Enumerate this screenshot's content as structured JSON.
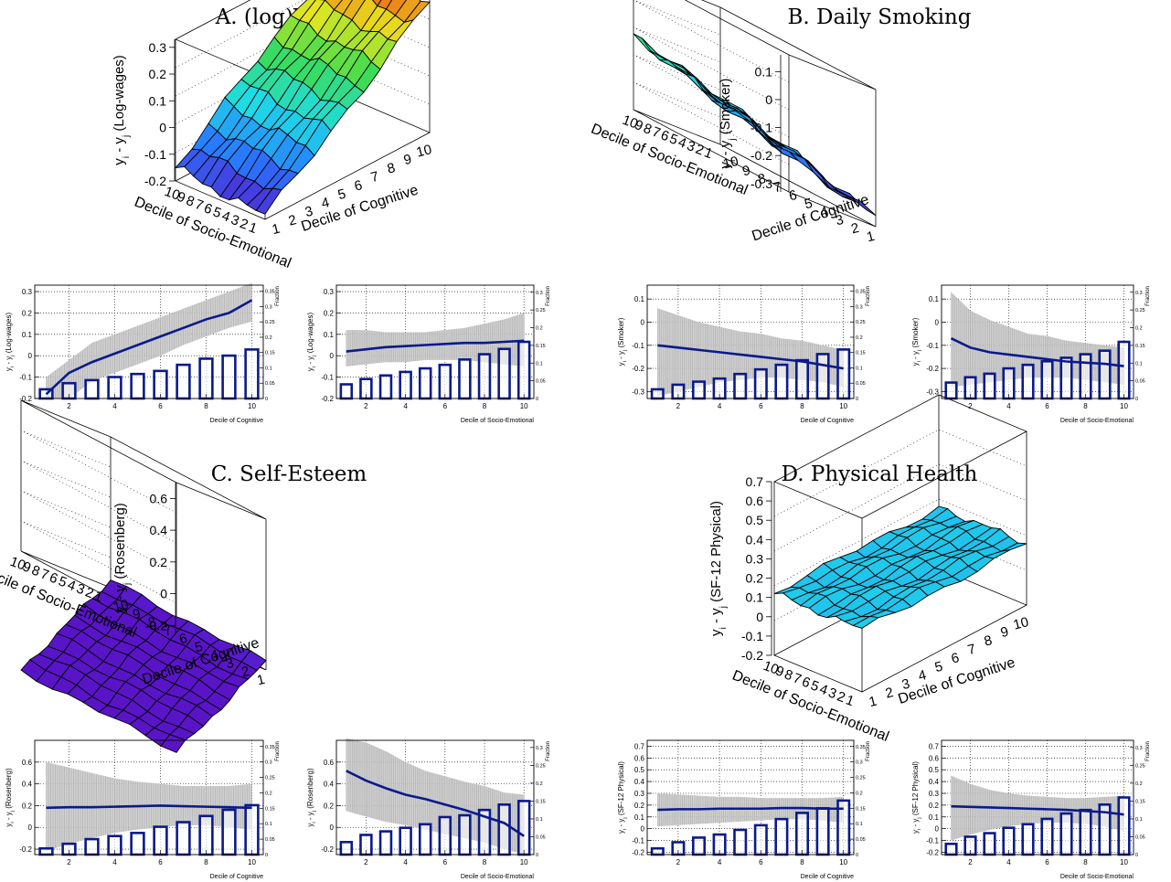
{
  "panels": {
    "A": {
      "title": "A. (log)Wages",
      "surface": {
        "zlabel": "y_i - y_j (Log-wages)",
        "zticks": [
          "0.3",
          "0.2",
          "0.1",
          "0",
          "-0.1",
          "-0.2"
        ],
        "xlabel": "Decile of Cognitive",
        "ylabel": "Decile of Socio-Emotional",
        "xticks": [
          "1",
          "2",
          "3",
          "4",
          "5",
          "6",
          "7",
          "8",
          "9",
          "10"
        ],
        "yticks": [
          "10",
          "9",
          "8",
          "7",
          "6",
          "5",
          "4",
          "3",
          "2",
          "1"
        ]
      },
      "left": {
        "xlabel": "Decile of Cognitive",
        "ylabel": "y_i - y_j (Log-wages)",
        "yticks": [
          "0.3",
          "0.2",
          "0.1",
          "0",
          "-0.1",
          "-0.2"
        ],
        "xticks": [
          "2",
          "4",
          "6",
          "8",
          "10"
        ],
        "rticks": [
          "0.35",
          "0.3",
          "0.25",
          "0.2",
          "0.15",
          "0.1",
          "0.05",
          "0"
        ],
        "rlabel": "Fraction"
      },
      "right": {
        "xlabel": "Decile of Socio-Emotional",
        "ylabel": "y_i - y_j (Log-wages)",
        "yticks": [
          "0.3",
          "0.2",
          "0.1",
          "0",
          "-0.1",
          "-0.2"
        ],
        "xticks": [
          "2",
          "4",
          "6",
          "8",
          "10"
        ],
        "rticks": [
          "0.3",
          "0.25",
          "0.2",
          "0.15",
          "0.1",
          "0.05",
          "0"
        ],
        "rlabel": "Fraction"
      }
    },
    "B": {
      "title": "B. Daily Smoking",
      "surface": {
        "zlabel": "y_i - y_j (Smoker)",
        "zticks": [
          "0.1",
          "0",
          "-0.1",
          "-0.2",
          "-0.3"
        ],
        "xlabel": "Decile of Cognitive",
        "ylabel": "Decile of Socio-Emotional",
        "xticks": [
          "10",
          "9",
          "8",
          "7",
          "6",
          "5",
          "4",
          "3",
          "2",
          "1"
        ],
        "yticks": [
          "1",
          "2",
          "3",
          "4",
          "5",
          "6",
          "7",
          "8",
          "9",
          "10"
        ]
      },
      "left": {
        "xlabel": "Decile of Cognitive",
        "ylabel": "y_i - y_j (Smoker)",
        "yticks": [
          "0.1",
          "0",
          "-0.1",
          "-0.2",
          "-0.3"
        ],
        "xticks": [
          "2",
          "4",
          "6",
          "8",
          "10"
        ],
        "rticks": [
          "0.35",
          "0.3",
          "0.25",
          "0.2",
          "0.15",
          "0.1",
          "0.05",
          "0"
        ],
        "rlabel": "Fraction"
      },
      "right": {
        "xlabel": "Decile of Socio-Emotional",
        "ylabel": "y_i - y_j (Smoker)",
        "yticks": [
          "0.1",
          "0",
          "-0.1",
          "-0.2",
          "-0.3"
        ],
        "xticks": [
          "2",
          "4",
          "6",
          "8",
          "10"
        ],
        "rticks": [
          "0.3",
          "0.25",
          "0.2",
          "0.15",
          "0.1",
          "0.05",
          "0"
        ],
        "rlabel": "Fraction"
      }
    },
    "C": {
      "title": "C. Self-Esteem",
      "surface": {
        "zlabel": "y_i - y_j (Rosenberg)",
        "zticks": [
          "0.6",
          "0.4",
          "0.2",
          "0",
          "-0.2"
        ],
        "xlabel": "Decile of Cognitive",
        "ylabel": "Decile of Socio-Emotional",
        "xticks": [
          "10",
          "9",
          "8",
          "7",
          "6",
          "5",
          "4",
          "3",
          "2",
          "1"
        ],
        "yticks": [
          "1",
          "2",
          "3",
          "4",
          "5",
          "6",
          "7",
          "8",
          "9",
          "10"
        ]
      },
      "left": {
        "xlabel": "Decile of Cognitive",
        "ylabel": "y_i - y_j (Rosenberg)",
        "yticks": [
          "0.6",
          "0.4",
          "0.2",
          "0",
          "-0.2"
        ],
        "xticks": [
          "2",
          "4",
          "6",
          "8",
          "10"
        ],
        "rticks": [
          "0.35",
          "0.3",
          "0.25",
          "0.2",
          "0.15",
          "0.1",
          "0.05",
          "0"
        ],
        "rlabel": "Fraction"
      },
      "right": {
        "xlabel": "Decile of Socio-Emotional",
        "ylabel": "y_i - y_j (Rosenberg)",
        "yticks": [
          "0.6",
          "0.4",
          "0.2",
          "0",
          "-0.2"
        ],
        "xticks": [
          "2",
          "4",
          "6",
          "8",
          "10"
        ],
        "rticks": [
          "0.3",
          "0.25",
          "0.2",
          "0.15",
          "0.1",
          "0.05",
          "0"
        ],
        "rlabel": "Fraction"
      }
    },
    "D": {
      "title": "D. Physical Health",
      "surface": {
        "zlabel": "y_i - y_j (SF-12 Physical)",
        "zticks": [
          "0.7",
          "0.6",
          "0.5",
          "0.4",
          "0.3",
          "0.2",
          "0.1",
          "0",
          "-0.1",
          "-0.2"
        ],
        "xlabel": "Decile of Cognitive",
        "ylabel": "Decile of Socio-Emotional",
        "xticks": [
          "1",
          "2",
          "3",
          "4",
          "5",
          "6",
          "7",
          "8",
          "9",
          "10"
        ],
        "yticks": [
          "10",
          "9",
          "8",
          "7",
          "6",
          "5",
          "4",
          "3",
          "2",
          "1"
        ]
      },
      "left": {
        "xlabel": "Decile of Cognitive",
        "ylabel": "y_i - y_j (SF-12 Physical)",
        "yticks": [
          "0.7",
          "0.6",
          "0.5",
          "0.4",
          "0.3",
          "0.2",
          "0.1",
          "0",
          "-0.1",
          "-0.2"
        ],
        "xticks": [
          "2",
          "4",
          "6",
          "8",
          "10"
        ],
        "rticks": [
          "0.35",
          "0.3",
          "0.25",
          "0.2",
          "0.15",
          "0.1",
          "0.05",
          "0"
        ],
        "rlabel": "Fraction"
      },
      "right": {
        "xlabel": "Decile of Socio-Emotional",
        "ylabel": "y_i - y_j (SF-12 Physical)",
        "yticks": [
          "0.7",
          "0.6",
          "0.5",
          "0.4",
          "0.3",
          "0.2",
          "0.1",
          "0",
          "-0.1",
          "-0.2"
        ],
        "xticks": [
          "2",
          "4",
          "6",
          "8",
          "10"
        ],
        "rticks": [
          "0.3",
          "0.25",
          "0.2",
          "0.15",
          "0.1",
          "0.05",
          "0"
        ],
        "rlabel": "Fraction"
      }
    }
  },
  "chart_data": [
    {
      "panel": "A-left",
      "type": "line",
      "x": [
        1,
        2,
        3,
        4,
        5,
        6,
        7,
        8,
        9,
        10
      ],
      "y": [
        -0.18,
        -0.08,
        -0.03,
        0.01,
        0.05,
        0.09,
        0.13,
        0.17,
        0.2,
        0.26
      ],
      "band_low": [
        -0.2,
        -0.2,
        -0.12,
        -0.08,
        -0.04,
        0.0,
        0.05,
        0.09,
        0.13,
        0.16
      ],
      "band_high": [
        -0.1,
        -0.02,
        0.06,
        0.1,
        0.14,
        0.18,
        0.22,
        0.26,
        0.3,
        0.34
      ],
      "bars": [
        0.03,
        0.05,
        0.06,
        0.07,
        0.08,
        0.09,
        0.11,
        0.13,
        0.14,
        0.16
      ],
      "ylim": [
        -0.2,
        0.33
      ],
      "rlim": [
        0,
        0.37
      ]
    },
    {
      "panel": "A-right",
      "type": "line",
      "x": [
        1,
        2,
        3,
        4,
        5,
        6,
        7,
        8,
        9,
        10
      ],
      "y": [
        0.02,
        0.03,
        0.04,
        0.045,
        0.05,
        0.055,
        0.06,
        0.06,
        0.065,
        0.07
      ],
      "band_low": [
        -0.05,
        -0.04,
        -0.03,
        -0.03,
        -0.02,
        -0.02,
        -0.02,
        -0.03,
        -0.04,
        -0.05
      ],
      "band_high": [
        0.12,
        0.12,
        0.11,
        0.11,
        0.11,
        0.12,
        0.13,
        0.15,
        0.17,
        0.2
      ],
      "bars": [
        0.04,
        0.055,
        0.065,
        0.075,
        0.085,
        0.095,
        0.11,
        0.125,
        0.14,
        0.16
      ],
      "ylim": [
        -0.2,
        0.33
      ],
      "rlim": [
        0,
        0.32
      ]
    },
    {
      "panel": "B-left",
      "type": "line",
      "x": [
        1,
        2,
        3,
        4,
        5,
        6,
        7,
        8,
        9,
        10
      ],
      "y": [
        -0.1,
        -0.11,
        -0.12,
        -0.13,
        -0.14,
        -0.15,
        -0.16,
        -0.17,
        -0.185,
        -0.2
      ],
      "band_low": [
        -0.32,
        -0.3,
        -0.28,
        -0.26,
        -0.25,
        -0.24,
        -0.24,
        -0.25,
        -0.26,
        -0.28
      ],
      "band_high": [
        0.06,
        0.03,
        0.0,
        -0.02,
        -0.04,
        -0.05,
        -0.07,
        -0.08,
        -0.1,
        -0.12
      ],
      "bars": [
        0.03,
        0.045,
        0.055,
        0.065,
        0.08,
        0.095,
        0.11,
        0.125,
        0.145,
        0.16
      ],
      "ylim": [
        -0.33,
        0.16
      ],
      "rlim": [
        0,
        0.37
      ]
    },
    {
      "panel": "B-right",
      "type": "line",
      "x": [
        1,
        2,
        3,
        4,
        5,
        6,
        7,
        8,
        9,
        10
      ],
      "y": [
        -0.07,
        -0.11,
        -0.13,
        -0.14,
        -0.15,
        -0.16,
        -0.17,
        -0.175,
        -0.18,
        -0.19
      ],
      "band_low": [
        -0.28,
        -0.27,
        -0.26,
        -0.25,
        -0.24,
        -0.24,
        -0.24,
        -0.25,
        -0.26,
        -0.27
      ],
      "band_high": [
        0.13,
        0.05,
        0.01,
        -0.02,
        -0.05,
        -0.06,
        -0.08,
        -0.09,
        -0.1,
        -0.11
      ],
      "bars": [
        0.045,
        0.06,
        0.07,
        0.085,
        0.095,
        0.105,
        0.115,
        0.125,
        0.135,
        0.16
      ],
      "ylim": [
        -0.33,
        0.16
      ],
      "rlim": [
        0,
        0.32
      ]
    },
    {
      "panel": "C-left",
      "type": "line",
      "x": [
        1,
        2,
        3,
        4,
        5,
        6,
        7,
        8,
        9,
        10
      ],
      "y": [
        0.18,
        0.185,
        0.185,
        0.19,
        0.195,
        0.2,
        0.195,
        0.19,
        0.185,
        0.18
      ],
      "band_low": [
        -0.22,
        -0.15,
        -0.1,
        -0.05,
        -0.02,
        0.0,
        0.02,
        0.02,
        0.0,
        -0.02
      ],
      "band_high": [
        0.6,
        0.55,
        0.5,
        0.45,
        0.42,
        0.4,
        0.38,
        0.38,
        0.38,
        0.4
      ],
      "bars": [
        0.02,
        0.035,
        0.05,
        0.06,
        0.07,
        0.09,
        0.105,
        0.125,
        0.145,
        0.16
      ],
      "ylim": [
        -0.25,
        0.8
      ],
      "rlim": [
        0,
        0.37
      ]
    },
    {
      "panel": "C-right",
      "type": "line",
      "x": [
        1,
        2,
        3,
        4,
        5,
        6,
        7,
        8,
        9,
        10
      ],
      "y": [
        0.52,
        0.43,
        0.36,
        0.3,
        0.26,
        0.21,
        0.16,
        0.1,
        0.04,
        -0.08
      ],
      "band_low": [
        0.15,
        0.1,
        0.05,
        0.02,
        -0.02,
        -0.06,
        -0.1,
        -0.14,
        -0.2,
        -0.25
      ],
      "band_high": [
        0.82,
        0.78,
        0.7,
        0.6,
        0.52,
        0.47,
        0.42,
        0.38,
        0.32,
        0.3
      ],
      "bars": [
        0.035,
        0.055,
        0.065,
        0.075,
        0.085,
        0.105,
        0.11,
        0.125,
        0.14,
        0.15
      ],
      "ylim": [
        -0.25,
        0.8
      ],
      "rlim": [
        0,
        0.32
      ]
    },
    {
      "panel": "D-left",
      "type": "line",
      "x": [
        1,
        2,
        3,
        4,
        5,
        6,
        7,
        8,
        9,
        10
      ],
      "y": [
        0.16,
        0.165,
        0.165,
        0.17,
        0.17,
        0.17,
        0.175,
        0.175,
        0.17,
        0.17
      ],
      "band_low": [
        0.02,
        0.03,
        0.04,
        0.05,
        0.06,
        0.07,
        0.08,
        0.08,
        0.07,
        0.05
      ],
      "band_high": [
        0.3,
        0.29,
        0.28,
        0.27,
        0.27,
        0.26,
        0.26,
        0.26,
        0.26,
        0.27
      ],
      "bars": [
        0.02,
        0.04,
        0.055,
        0.065,
        0.08,
        0.095,
        0.115,
        0.135,
        0.15,
        0.175
      ],
      "ylim": [
        -0.22,
        0.75
      ],
      "rlim": [
        0,
        0.37
      ]
    },
    {
      "panel": "D-right",
      "type": "line",
      "x": [
        1,
        2,
        3,
        4,
        5,
        6,
        7,
        8,
        9,
        10
      ],
      "y": [
        0.19,
        0.185,
        0.18,
        0.175,
        0.17,
        0.165,
        0.16,
        0.15,
        0.14,
        0.12
      ],
      "band_low": [
        -0.1,
        -0.05,
        -0.01,
        0.02,
        0.04,
        0.05,
        0.05,
        0.04,
        0.02,
        -0.02
      ],
      "band_high": [
        0.45,
        0.38,
        0.33,
        0.3,
        0.28,
        0.27,
        0.26,
        0.26,
        0.27,
        0.28
      ],
      "bars": [
        0.03,
        0.05,
        0.06,
        0.075,
        0.085,
        0.1,
        0.115,
        0.125,
        0.14,
        0.16
      ],
      "ylim": [
        -0.22,
        0.75
      ],
      "rlim": [
        0,
        0.32
      ]
    }
  ],
  "surface_data": {
    "A": {
      "z_base": -0.19,
      "z_slope_x": 0.048,
      "z_slope_y": 0.004,
      "zlim": [
        -0.2,
        0.33
      ]
    },
    "B": {
      "z_base": -0.3,
      "z_slope_x": 0.012,
      "z_slope_y": 0.012,
      "zlim": [
        -0.33,
        0.16
      ]
    },
    "C": {
      "z_base": -0.2,
      "z_slope_x": 0.0,
      "z_slope_y": -0.08,
      "zlim": [
        -0.25,
        0.7
      ]
    },
    "D": {
      "z_base": 0.12,
      "z_slope_x": 0.0,
      "z_slope_y": 0.0,
      "zlim": [
        -0.2,
        0.7
      ]
    }
  }
}
